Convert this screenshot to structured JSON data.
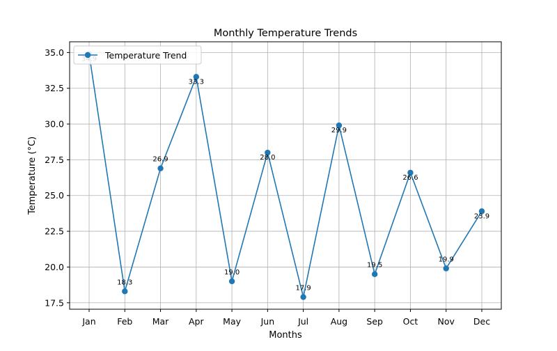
{
  "colors": {
    "series": "#1f77b4",
    "grid": "#b0b0b0",
    "axis": "#000000",
    "background": "#ffffff"
  },
  "chart_data": {
    "type": "line",
    "title": "Monthly Temperature Trends",
    "xlabel": "Months",
    "ylabel": "Temperature (°C)",
    "categories": [
      "Jan",
      "Feb",
      "Mar",
      "Apr",
      "May",
      "Jun",
      "Jul",
      "Aug",
      "Sep",
      "Oct",
      "Nov",
      "Dec"
    ],
    "series": [
      {
        "name": "Temperature Trend",
        "marker": "circle",
        "values": [
          34.9,
          18.3,
          26.9,
          33.3,
          19.0,
          28.0,
          17.9,
          29.9,
          19.5,
          26.6,
          19.9,
          23.9
        ]
      }
    ],
    "data_labels": [
      "34.9",
      "18.3",
      "26.9",
      "33.3",
      "19.0",
      "28.0",
      "17.9",
      "29.9",
      "19.5",
      "26.6",
      "19.9",
      "23.9"
    ],
    "yticks": [
      "17.5",
      "20.0",
      "22.5",
      "25.0",
      "27.5",
      "30.0",
      "32.5",
      "35.0"
    ],
    "ylim": [
      17.05,
      35.75
    ],
    "grid": true,
    "legend_position": "top-left"
  }
}
